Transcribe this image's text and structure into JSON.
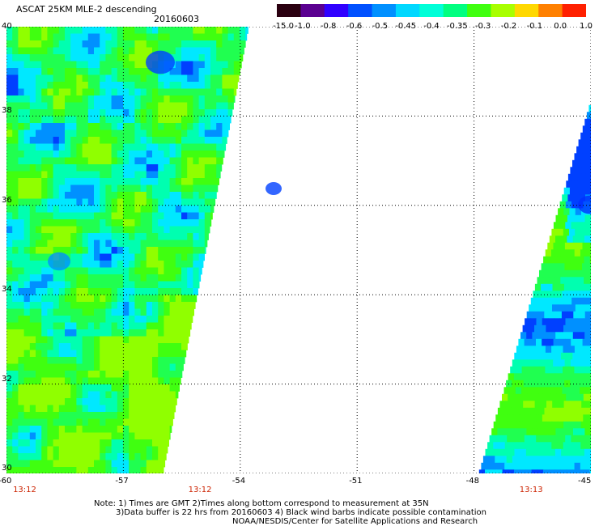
{
  "chart_data": {
    "type": "heatmap",
    "title": "ASCAT 25KM MLE-2 descending",
    "date": "20160603",
    "x_ticks": [
      "-60",
      "-57",
      "-54",
      "-51",
      "-48",
      "-45"
    ],
    "y_ticks": [
      "40",
      "38",
      "36",
      "34",
      "32",
      "30"
    ],
    "xlim": [
      -60,
      -45
    ],
    "ylim": [
      30,
      40
    ],
    "grid": true,
    "colorbar": {
      "labels": [
        "-15.0",
        "-1.0",
        "-0.8",
        "-0.6",
        "-0.5",
        "-0.45",
        "-0.4",
        "-0.35",
        "-0.3",
        "-0.2",
        "-0.1",
        "0.0",
        "1.0"
      ],
      "colors": [
        "#2a0010",
        "#5a0090",
        "#3000ff",
        "#0050ff",
        "#0090ff",
        "#00d8ff",
        "#00ffd8",
        "#00ff80",
        "#40ff10",
        "#a8ff00",
        "#ffd800",
        "#ff8000",
        "#ff2000"
      ]
    },
    "swath_times": [
      {
        "text": "13:12",
        "lon": -59.5
      },
      {
        "text": "13:12",
        "lon": -55.0
      },
      {
        "text": "13:13",
        "lon": -46.5
      }
    ],
    "swaths": [
      {
        "name": "west",
        "lon_min": -60,
        "lon_max": -53.8,
        "lat_min": 30,
        "lat_max": 40,
        "edge_top_lon": -53.8,
        "edge_bottom_lon": -56.0
      },
      {
        "name": "east",
        "lon_min": -47.9,
        "lon_max": -45,
        "lat_min": 30,
        "lat_max": 38.4,
        "edge_top_lon": -45.0,
        "edge_bottom_lon": -47.9
      }
    ]
  },
  "notes": {
    "line1": "Note: 1) Times are GMT 2)Times along bottom correspond to measurement at 35N",
    "line2": "3)Data buffer is 22 hrs from 20160603 4) Black wind barbs indicate possible contamination",
    "line3": "NOAA/NESDIS/Center for Satellite Applications and Research"
  }
}
